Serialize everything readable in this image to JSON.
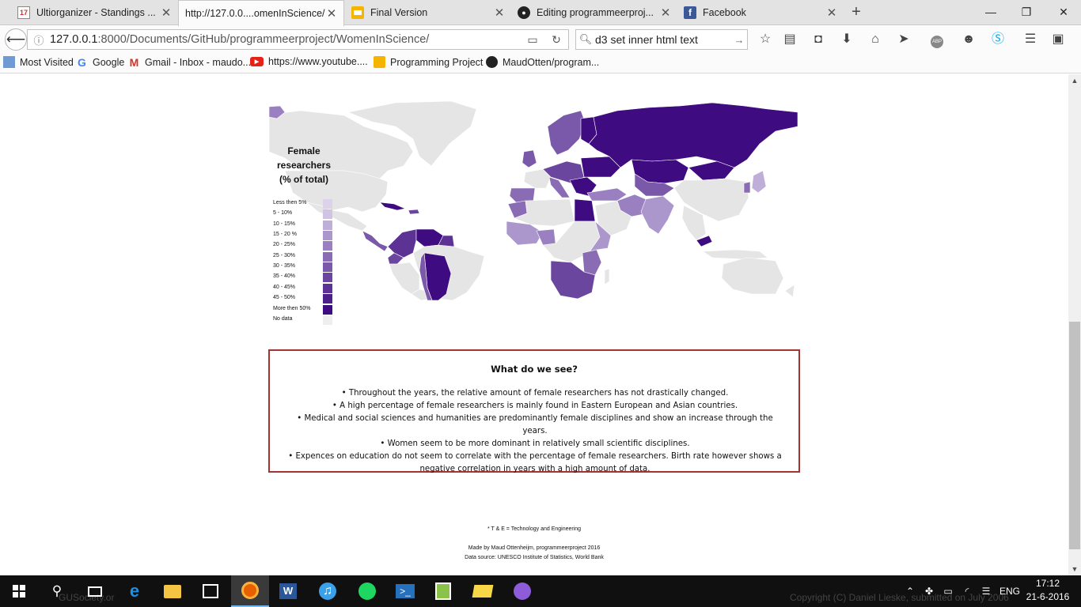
{
  "tabs": [
    {
      "label": "Ultiorganizer - Standings ...",
      "favicon": "ultiorganizer-icon",
      "active": false
    },
    {
      "label": "http://127.0.0....omenInScience/",
      "favicon": "",
      "active": true
    },
    {
      "label": "Final Version",
      "favicon": "slides-icon",
      "active": false
    },
    {
      "label": "Editing programmeerproj...",
      "favicon": "github-icon",
      "active": false
    },
    {
      "label": "Facebook",
      "favicon": "facebook-icon",
      "active": false
    }
  ],
  "navigation": {
    "url_host": "127.0.0.1",
    "url_rest": ":8000/Documents/GitHub/programmeerproject/WomenInScience/",
    "search_value": "d3 set inner html text"
  },
  "bookmarks": [
    {
      "label": "Most Visited",
      "icon": "bookmarks-icon"
    },
    {
      "label": "Google",
      "icon": "google-icon"
    },
    {
      "label": "Gmail - Inbox - maudo...",
      "icon": "gmail-icon"
    },
    {
      "label": "https://www.youtube....",
      "icon": "youtube-icon"
    },
    {
      "label": "Programming Project",
      "icon": "slides-icon"
    },
    {
      "label": "MaudOtten/program...",
      "icon": "github-icon"
    }
  ],
  "legend": {
    "title": "Female researchers (% of total)",
    "items": [
      {
        "label": "Less then 5%",
        "color": "#dcd3ea"
      },
      {
        "label": "5 - 10%",
        "color": "#d0c3e3"
      },
      {
        "label": "10 - 15%",
        "color": "#bfaed8"
      },
      {
        "label": "15 - 20 %",
        "color": "#ac97cc"
      },
      {
        "label": "20 - 25%",
        "color": "#9a80c0"
      },
      {
        "label": "25 - 30%",
        "color": "#8a6cb5"
      },
      {
        "label": "30 - 35%",
        "color": "#7a59aa"
      },
      {
        "label": "35 - 40%",
        "color": "#6b469f"
      },
      {
        "label": "40 - 45%",
        "color": "#5c3295"
      },
      {
        "label": "45 - 50%",
        "color": "#4d1f8b"
      },
      {
        "label": "More then 50%",
        "color": "#3e0b80"
      },
      {
        "label": "No data",
        "color": "#eeeeee"
      }
    ]
  },
  "map": {
    "no_data_color": "#e5e5e5",
    "border_color": "#ffffff"
  },
  "notes": {
    "title": "What do we see?",
    "bullets": [
      "• Throughout the years, the relative amount of female researchers has not drastically changed.",
      "• A high percentage of female researchers is mainly found in Eastern European and Asian countries.",
      "• Medical and social sciences and humanities are predominantly female disciplines and show an increase through the years.",
      "• Women seem to be more dominant in relatively small scientific disciplines.",
      "• Expences on education do not seem to correlate with the percentage of female researchers. Birth rate however shows a negative correlation in years with a high amount of data."
    ]
  },
  "footer": {
    "abbreviation": "* T & E = Technology and Engineering",
    "credit": "Made by Maud Ottenheijm, programmeerproject 2016",
    "source": "Data source: UNESCO Institute of Statistics, World Bank"
  },
  "taskbar": {
    "time": "17:12",
    "date": "21-6-2016",
    "language": "ENG",
    "ghost_left": "GUSociety.or",
    "ghost_right": "Copyright (C) Daniel Lieske, submitted on July 2006"
  }
}
